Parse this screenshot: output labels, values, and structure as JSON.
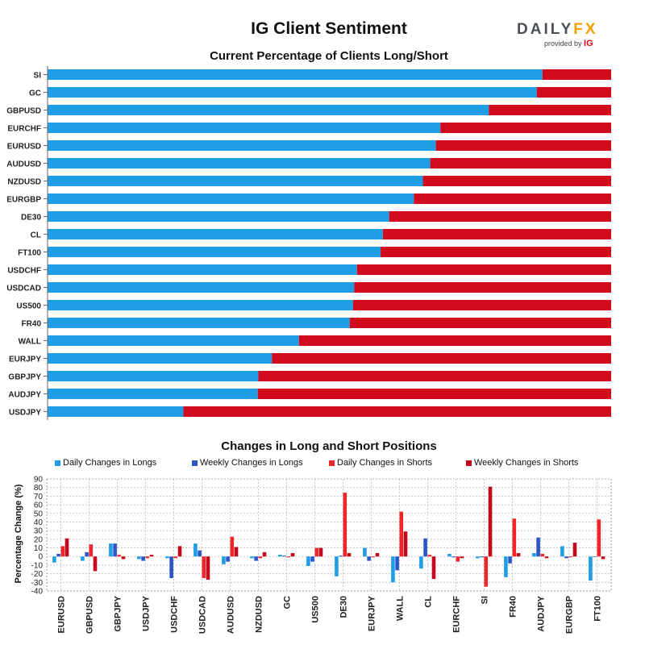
{
  "header": {
    "title": "IG Client Sentiment",
    "logo_main": "DAILY",
    "logo_fx": "FX",
    "logo_provided": "provided by",
    "logo_ig": "IG"
  },
  "colors": {
    "long": "#1f9ee6",
    "short": "#d10a1e",
    "daily_longs": "#1f9ee6",
    "weekly_longs": "#2a56c6",
    "daily_shorts": "#f0262a",
    "weekly_shorts": "#c4091c"
  },
  "chart_data": [
    {
      "type": "bar",
      "orientation": "horizontal",
      "stacked": true,
      "title": "Current Percentage of Clients Long/Short",
      "categories": [
        "SI",
        "GC",
        "GBPUSD",
        "EURCHF",
        "EURUSD",
        "AUDUSD",
        "NZDUSD",
        "EURGBP",
        "DE30",
        "CL",
        "FT100",
        "USDCHF",
        "USDCAD",
        "US500",
        "FR40",
        "WALL",
        "EURJPY",
        "GBPJPY",
        "AUDJPY",
        "USDJPY"
      ],
      "series": [
        {
          "values": [
            87.8,
            86.8,
            78.3,
            69.7,
            68.9,
            67.9,
            66.6,
            65.0,
            60.6,
            59.5,
            59.1,
            54.9,
            54.4,
            54.2,
            53.6,
            44.6,
            39.8,
            37.4,
            37.3,
            24.1
          ]
        },
        {
          "values": [
            12.2,
            13.2,
            21.7,
            30.3,
            31.1,
            32.1,
            33.4,
            35.0,
            39.4,
            40.5,
            40.9,
            45.1,
            45.6,
            45.8,
            46.4,
            55.4,
            60.2,
            62.6,
            62.7,
            75.9
          ]
        }
      ],
      "xlim": [
        0,
        100
      ]
    },
    {
      "type": "bar",
      "title": "Changes in Long and Short Positions",
      "ylabel": "Percentage Change (%)",
      "ylim": [
        -40,
        90
      ],
      "yticks": [
        "90",
        "80",
        "70",
        "60",
        "50",
        "40",
        "30",
        "20",
        "10",
        "0",
        "-10",
        "-20",
        "-30",
        "-40"
      ],
      "grid": true,
      "legend": "top",
      "categories": [
        "EURUSD",
        "GBPUSD",
        "GBPJPY",
        "USDJPY",
        "USDCHF",
        "USDCAD",
        "AUDUSD",
        "NZDUSD",
        "GC",
        "US500",
        "DE30",
        "EURJPY",
        "WALL",
        "CL",
        "EURCHF",
        "SI",
        "FR40",
        "AUDJPY",
        "EURGBP",
        "FT100"
      ],
      "series": [
        {
          "name": "Daily Changes in Longs",
          "values": [
            -7,
            -5,
            15,
            -3,
            -2,
            15,
            -9,
            -2,
            2,
            -11,
            -23,
            10,
            -30,
            -14,
            3,
            -2,
            -24,
            4,
            12,
            -28
          ]
        },
        {
          "name": "Weekly Changes in Longs",
          "values": [
            3,
            5,
            15,
            -5,
            -25,
            7,
            -6,
            -5,
            1,
            -6,
            1,
            -5,
            -16,
            21,
            -1,
            -1,
            -8,
            22,
            -2,
            0
          ]
        },
        {
          "name": "Daily Changes in Shorts",
          "values": [
            12,
            14,
            2,
            -2,
            -2,
            -25,
            23,
            -2,
            -1,
            10,
            74,
            -1,
            52,
            2,
            -6,
            -35,
            44,
            3,
            -1,
            43
          ]
        },
        {
          "name": "Weekly Changes in Shorts",
          "values": [
            21,
            -17,
            -3,
            2,
            12,
            -27,
            11,
            5,
            4,
            10,
            4,
            4,
            29,
            -26,
            -2,
            81,
            4,
            -2,
            16,
            -3
          ]
        }
      ]
    }
  ]
}
